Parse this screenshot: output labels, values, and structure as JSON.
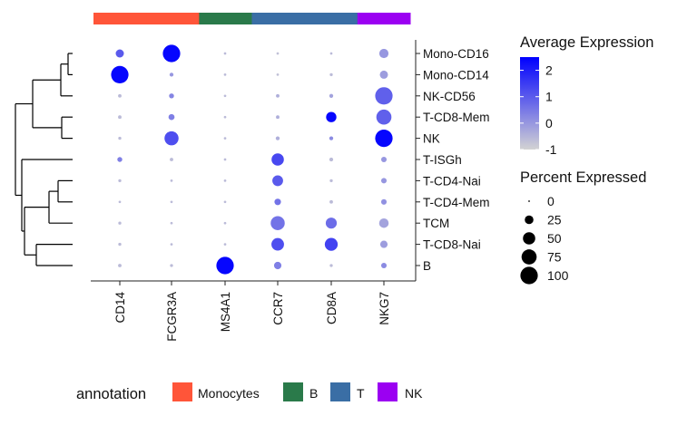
{
  "chart_data": {
    "type": "dotplot",
    "genes": [
      "CD14",
      "FCGR3A",
      "MS4A1",
      "CCR7",
      "CD8A",
      "NKG7"
    ],
    "clusters": [
      "Mono-CD16",
      "Mono-CD14",
      "NK-CD56",
      "T-CD8-Mem",
      "NK",
      "T-ISGh",
      "T-CD4-Nai",
      "T-CD4-Mem",
      "TCM",
      "T-CD8-Nai",
      "B"
    ],
    "gene_annotation": [
      "Monocytes",
      "Monocytes",
      "B",
      "T",
      "T",
      "NK"
    ],
    "annotation_categories": [
      {
        "name": "Monocytes",
        "color": "#FF5539"
      },
      {
        "name": "B",
        "color": "#2A7A4A"
      },
      {
        "name": "T",
        "color": "#3A6EA5"
      },
      {
        "name": "NK",
        "color": "#9B00F2"
      }
    ],
    "avg_expression": [
      [
        1.0,
        2.4,
        -0.6,
        -0.7,
        -0.6,
        0.0
      ],
      [
        2.4,
        0.0,
        -0.6,
        -0.7,
        -0.6,
        -0.1
      ],
      [
        -0.6,
        0.3,
        -0.6,
        -0.4,
        -0.2,
        0.9
      ],
      [
        -0.6,
        0.4,
        -0.6,
        -0.4,
        2.4,
        0.9
      ],
      [
        -0.6,
        1.2,
        -0.6,
        -0.4,
        0.2,
        2.4
      ],
      [
        0.4,
        -0.6,
        -0.6,
        1.3,
        -0.6,
        0.0
      ],
      [
        -0.6,
        -0.6,
        -0.6,
        1.0,
        -0.6,
        0.0
      ],
      [
        -0.6,
        -0.6,
        -0.6,
        0.6,
        -0.6,
        0.1
      ],
      [
        -0.6,
        -0.6,
        -0.6,
        0.6,
        0.7,
        -0.2
      ],
      [
        -0.6,
        -0.6,
        -0.6,
        1.2,
        1.4,
        -0.1
      ],
      [
        -0.6,
        -0.6,
        2.4,
        0.4,
        -0.6,
        0.2
      ]
    ],
    "pct_expressed": [
      [
        22,
        100,
        2,
        2,
        2,
        28
      ],
      [
        100,
        5,
        2,
        2,
        3,
        22
      ],
      [
        4,
        8,
        2,
        4,
        5,
        100
      ],
      [
        4,
        12,
        2,
        4,
        35,
        75
      ],
      [
        3,
        65,
        2,
        5,
        5,
        100
      ],
      [
        8,
        4,
        2,
        50,
        5,
        10
      ],
      [
        3,
        2,
        2,
        38,
        3,
        10
      ],
      [
        2,
        2,
        2,
        14,
        4,
        10
      ],
      [
        3,
        2,
        2,
        65,
        40,
        30
      ],
      [
        3,
        2,
        2,
        52,
        55,
        18
      ],
      [
        4,
        3,
        100,
        18,
        3,
        10
      ]
    ],
    "color_low": "#D3D3D3",
    "color_high": "#0000FF",
    "color_legend": {
      "title": "Average Expression",
      "ticks": [
        2,
        1,
        0,
        -1
      ],
      "range": [
        -1,
        2.5
      ]
    },
    "size_legend": {
      "title": "Percent Expressed",
      "values": [
        0,
        25,
        50,
        75,
        100
      ]
    },
    "annotation_legend": {
      "title": "annotation"
    },
    "dendrogram": "complete",
    "legend_position": "right",
    "grid": false
  }
}
